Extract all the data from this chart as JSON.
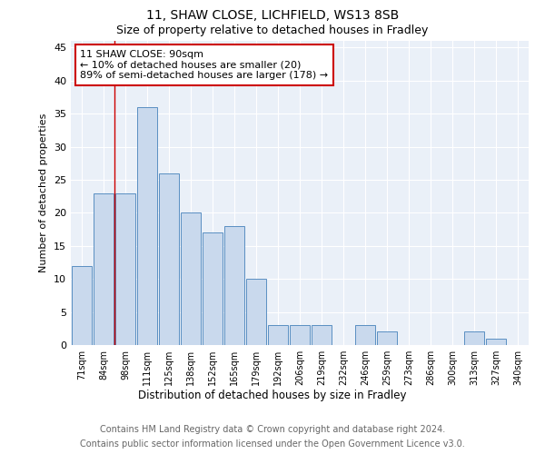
{
  "title1": "11, SHAW CLOSE, LICHFIELD, WS13 8SB",
  "title2": "Size of property relative to detached houses in Fradley",
  "xlabel": "Distribution of detached houses by size in Fradley",
  "ylabel": "Number of detached properties",
  "categories": [
    "71sqm",
    "84sqm",
    "98sqm",
    "111sqm",
    "125sqm",
    "138sqm",
    "152sqm",
    "165sqm",
    "179sqm",
    "192sqm",
    "206sqm",
    "219sqm",
    "232sqm",
    "246sqm",
    "259sqm",
    "273sqm",
    "286sqm",
    "300sqm",
    "313sqm",
    "327sqm",
    "340sqm"
  ],
  "values": [
    12,
    23,
    23,
    36,
    26,
    20,
    17,
    18,
    10,
    3,
    3,
    3,
    0,
    3,
    2,
    0,
    0,
    0,
    2,
    1,
    0
  ],
  "bar_color": "#c9d9ed",
  "bar_edge_color": "#5a8fc2",
  "vline_x_index": 1.5,
  "vline_color": "#cc0000",
  "annotation_line1": "11 SHAW CLOSE: 90sqm",
  "annotation_line2": "← 10% of detached houses are smaller (20)",
  "annotation_line3": "89% of semi-detached houses are larger (178) →",
  "annotation_box_color": "#ffffff",
  "annotation_box_edge": "#cc0000",
  "ylim": [
    0,
    46
  ],
  "yticks": [
    0,
    5,
    10,
    15,
    20,
    25,
    30,
    35,
    40,
    45
  ],
  "footer_line1": "Contains HM Land Registry data © Crown copyright and database right 2024.",
  "footer_line2": "Contains public sector information licensed under the Open Government Licence v3.0.",
  "plot_bg_color": "#eaf0f8",
  "title1_fontsize": 10,
  "title2_fontsize": 9,
  "annotation_fontsize": 8,
  "footer_fontsize": 7,
  "xlabel_fontsize": 8.5,
  "ylabel_fontsize": 8
}
